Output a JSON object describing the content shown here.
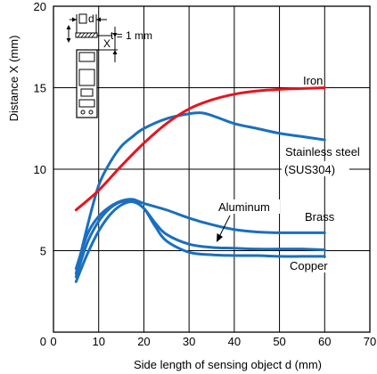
{
  "chart_data": {
    "type": "line",
    "xlabel": "Side length of sensing object d (mm)",
    "ylabel": "Distance X (mm)",
    "xlim": [
      0,
      70
    ],
    "ylim": [
      0,
      20
    ],
    "xticks": [
      0,
      10,
      20,
      30,
      40,
      50,
      60,
      70
    ],
    "yticks": [
      5,
      10,
      15,
      20
    ],
    "grid": true,
    "series": [
      {
        "name": "Iron",
        "color": "#e8141e",
        "x": [
          5,
          10,
          15,
          20,
          25,
          30,
          35,
          40,
          45,
          50,
          55,
          60
        ],
        "y": [
          7.5,
          8.7,
          10.2,
          11.6,
          12.8,
          13.7,
          14.25,
          14.6,
          14.8,
          14.9,
          14.95,
          15.0
        ]
      },
      {
        "name": "Stainless steel (SUS304)",
        "color": "#1a6fbf",
        "x": [
          5,
          7.5,
          10,
          12.5,
          15,
          17.5,
          20,
          25,
          30,
          33,
          36,
          40,
          45,
          50,
          55,
          60
        ],
        "y": [
          3.6,
          6.5,
          9.0,
          10.4,
          11.4,
          12.0,
          12.5,
          13.1,
          13.4,
          13.45,
          13.2,
          12.8,
          12.5,
          12.2,
          12.0,
          11.8
        ]
      },
      {
        "name": "Brass",
        "color": "#1a6fbf",
        "x": [
          5,
          7.5,
          10,
          12.5,
          15,
          17.5,
          20,
          25,
          30,
          35,
          40,
          45,
          50,
          55,
          60
        ],
        "y": [
          3.9,
          6.0,
          7.1,
          7.7,
          8.05,
          8.15,
          7.9,
          7.5,
          7.0,
          6.6,
          6.3,
          6.15,
          6.1,
          6.1,
          6.1
        ]
      },
      {
        "name": "Aluminum",
        "color": "#1a6fbf",
        "x": [
          5,
          7.5,
          10,
          12.5,
          15,
          17.5,
          20,
          22.5,
          25,
          30,
          35,
          40,
          45,
          50,
          55,
          60
        ],
        "y": [
          3.4,
          5.5,
          6.8,
          7.6,
          8.0,
          8.05,
          7.6,
          6.7,
          6.0,
          5.4,
          5.2,
          5.15,
          5.1,
          5.1,
          5.1,
          5.05
        ]
      },
      {
        "name": "Copper",
        "color": "#1a6fbf",
        "x": [
          5,
          7.5,
          10,
          12.5,
          15,
          17.5,
          20,
          22.5,
          25,
          30,
          35,
          40,
          45,
          50,
          55,
          60
        ],
        "y": [
          3.1,
          4.8,
          6.2,
          7.2,
          7.8,
          8.0,
          7.6,
          6.5,
          5.6,
          4.9,
          4.75,
          4.7,
          4.7,
          4.65,
          4.65,
          4.65
        ]
      }
    ],
    "annotations": {
      "iron": "Iron",
      "stainless_line1": "Stainless steel",
      "stainless_line2": "(SUS304)",
      "aluminum": "Aluminum",
      "brass": "Brass",
      "copper": "Copper"
    },
    "inset": {
      "d_label": "d",
      "x_label": "X",
      "thickness_label": "t = 1 mm"
    }
  }
}
